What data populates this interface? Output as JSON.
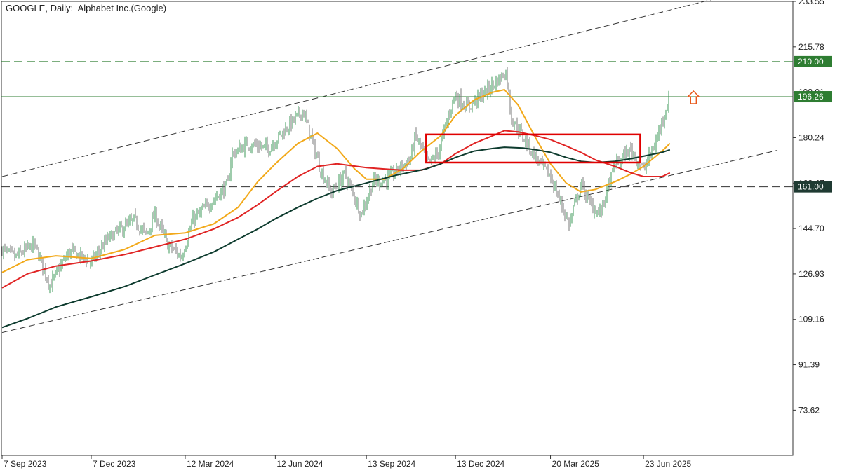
{
  "header": {
    "symbol": "GOOGLE",
    "timeframe": "Daily",
    "description": "Alphabet Inc.(Google)"
  },
  "chart_data": {
    "type": "candlestick",
    "title": "GOOGLE, Daily:  Alphabet Inc.(Google)",
    "y_ticks": [
      233.55,
      215.78,
      198.01,
      180.24,
      162.47,
      144.7,
      126.93,
      109.16,
      91.39,
      73.62
    ],
    "y_tick_labels": [
      "233.55",
      "215.78",
      "198.01",
      "180.24",
      "162.47",
      "144.70",
      "126.93",
      "109.16",
      "91.39",
      "73.62"
    ],
    "ylim": [
      55.9,
      233.55
    ],
    "x_ticks": [
      "7 Sep 2023",
      "7 Dec 2023",
      "12 Mar 2024",
      "12 Jun 2024",
      "13 Sep 2024",
      "13 Dec 2024",
      "20 Mar 2025",
      "23 Jun 2025"
    ],
    "grid": false,
    "levels": [
      {
        "value": 210.0,
        "label": "210.00",
        "style": "dashed",
        "color": "#2e7d32"
      },
      {
        "value": 196.26,
        "label": "196.26",
        "style": "solid",
        "color": "#2e7d32"
      },
      {
        "value": 161.0,
        "label": "161.00",
        "style": "dashed",
        "color": "#333333"
      }
    ],
    "channel": {
      "upper": {
        "from": [
          "7 Sep 2023",
          165.0
        ],
        "to": [
          "1 Jun 2025",
          225.5
        ]
      },
      "lower": {
        "from": [
          "7 Sep 2023",
          104.0
        ],
        "to": [
          "1 Jun 2025",
          161.0
        ]
      }
    },
    "zone": {
      "from": "13 Nov 2024",
      "to": "1 Jun 2025",
      "high": 181.5,
      "low": 170.5,
      "color": "#e00000"
    },
    "arrow": {
      "date": "13 Aug 2025",
      "value": 196.0,
      "direction": "up",
      "color": "#e8581a"
    },
    "moving_averages": [
      {
        "color": "#f2a91a",
        "values": [
          [
            "7 Sep 2023",
            127.5
          ],
          [
            "3 Oct 2023",
            132.5
          ],
          [
            "1 Nov 2023",
            134.0
          ],
          [
            "7 Dec 2023",
            133.0
          ],
          [
            "10 Jan 2024",
            136.5
          ],
          [
            "10 Feb 2024",
            142.0
          ],
          [
            "12 Mar 2024",
            143.0
          ],
          [
            "10 Apr 2024",
            146.5
          ],
          [
            "5 May 2024",
            153.0
          ],
          [
            "25 May 2024",
            163.0
          ],
          [
            "12 Jun 2024",
            170.0
          ],
          [
            "5 Jul 2024",
            178.0
          ],
          [
            "25 Jul 2024",
            182.0
          ],
          [
            "14 Aug 2024",
            176.0
          ],
          [
            "1 Sep 2024",
            168.0
          ],
          [
            "13 Sep 2024",
            164.0
          ],
          [
            "1 Oct 2024",
            164.0
          ],
          [
            "20 Oct 2024",
            168.0
          ],
          [
            "8 Nov 2024",
            175.0
          ],
          [
            "28 Nov 2024",
            181.0
          ],
          [
            "13 Dec 2024",
            189.0
          ],
          [
            "1 Jan 2025",
            195.0
          ],
          [
            "20 Jan 2025",
            198.0
          ],
          [
            "1 Feb 2025",
            199.0
          ],
          [
            "15 Feb 2025",
            193.0
          ],
          [
            "5 Mar 2025",
            180.0
          ],
          [
            "20 Mar 2025",
            170.0
          ],
          [
            "5 Apr 2025",
            162.5
          ],
          [
            "20 Apr 2025",
            159.0
          ],
          [
            "5 May 2025",
            160.0
          ],
          [
            "25 May 2025",
            163.0
          ],
          [
            "10 Jun 2025",
            166.0
          ],
          [
            "23 Jun 2025",
            169.0
          ],
          [
            "12 Jul 2025",
            175.0
          ],
          [
            "20 Jul 2025",
            178.0
          ]
        ]
      },
      {
        "color": "#e02424",
        "values": [
          [
            "7 Sep 2023",
            121.5
          ],
          [
            "3 Oct 2023",
            127.0
          ],
          [
            "1 Nov 2023",
            130.0
          ],
          [
            "7 Dec 2023",
            132.0
          ],
          [
            "10 Jan 2024",
            134.5
          ],
          [
            "10 Feb 2024",
            137.5
          ],
          [
            "12 Mar 2024",
            140.5
          ],
          [
            "10 Apr 2024",
            144.5
          ],
          [
            "5 May 2024",
            149.0
          ],
          [
            "25 May 2024",
            154.0
          ],
          [
            "12 Jun 2024",
            159.0
          ],
          [
            "5 Jul 2024",
            165.0
          ],
          [
            "25 Jul 2024",
            169.0
          ],
          [
            "14 Aug 2024",
            170.0
          ],
          [
            "13 Sep 2024",
            168.5
          ],
          [
            "1 Oct 2024",
            168.0
          ],
          [
            "20 Oct 2024",
            167.5
          ],
          [
            "8 Nov 2024",
            167.5
          ],
          [
            "28 Nov 2024",
            170.0
          ],
          [
            "13 Dec 2024",
            174.0
          ],
          [
            "1 Jan 2025",
            178.0
          ],
          [
            "20 Jan 2025",
            181.0
          ],
          [
            "1 Feb 2025",
            183.0
          ],
          [
            "15 Feb 2025",
            182.5
          ],
          [
            "5 Mar 2025",
            181.0
          ],
          [
            "20 Mar 2025",
            179.5
          ],
          [
            "5 Apr 2025",
            177.0
          ],
          [
            "20 Apr 2025",
            174.5
          ],
          [
            "5 May 2025",
            171.5
          ],
          [
            "25 May 2025",
            169.0
          ],
          [
            "10 Jun 2025",
            166.5
          ],
          [
            "23 Jun 2025",
            165.0
          ],
          [
            "12 Jul 2025",
            165.0
          ],
          [
            "20 Jul 2025",
            166.5
          ]
        ]
      },
      {
        "color": "#0d3b2e",
        "values": [
          [
            "7 Sep 2023",
            106.0
          ],
          [
            "3 Oct 2023",
            109.5
          ],
          [
            "1 Nov 2023",
            114.0
          ],
          [
            "7 Dec 2023",
            118.0
          ],
          [
            "10 Jan 2024",
            122.0
          ],
          [
            "10 Feb 2024",
            126.5
          ],
          [
            "12 Mar 2024",
            131.0
          ],
          [
            "10 Apr 2024",
            135.5
          ],
          [
            "5 May 2024",
            140.5
          ],
          [
            "25 May 2024",
            144.5
          ],
          [
            "12 Jun 2024",
            148.5
          ],
          [
            "5 Jul 2024",
            153.0
          ],
          [
            "25 Jul 2024",
            156.5
          ],
          [
            "14 Aug 2024",
            159.5
          ],
          [
            "13 Sep 2024",
            162.5
          ],
          [
            "13 Oct 2024",
            165.5
          ],
          [
            "13 Nov 2024",
            168.0
          ],
          [
            "28 Nov 2024",
            170.0
          ],
          [
            "13 Dec 2024",
            172.5
          ],
          [
            "1 Jan 2025",
            175.0
          ],
          [
            "20 Jan 2025",
            176.0
          ],
          [
            "1 Feb 2025",
            176.5
          ],
          [
            "20 Feb 2025",
            176.2
          ],
          [
            "5 Mar 2025",
            175.5
          ],
          [
            "20 Mar 2025",
            174.5
          ],
          [
            "5 Apr 2025",
            172.5
          ],
          [
            "20 Apr 2025",
            171.0
          ],
          [
            "5 May 2025",
            170.5
          ],
          [
            "25 May 2025",
            171.0
          ],
          [
            "10 Jun 2025",
            172.0
          ],
          [
            "23 Jun 2025",
            173.0
          ],
          [
            "12 Jul 2025",
            174.5
          ],
          [
            "20 Jul 2025",
            175.5
          ]
        ]
      }
    ],
    "price_path": [
      [
        "7 Sep 2023",
        136.5
      ],
      [
        "20 Sep 2023",
        133.5
      ],
      [
        "10 Oct 2023",
        138.5
      ],
      [
        "26 Oct 2023",
        122.5
      ],
      [
        "15 Nov 2023",
        136.0
      ],
      [
        "7 Dec 2023",
        131.5
      ],
      [
        "25 Dec 2023",
        141.0
      ],
      [
        "20 Jan 2024",
        148.0
      ],
      [
        "1 Feb 2024",
        142.0
      ],
      [
        "10 Feb 2024",
        150.0
      ],
      [
        "23 Feb 2024",
        138.5
      ],
      [
        "8 Mar 2024",
        133.5
      ],
      [
        "20 Mar 2024",
        148.0
      ],
      [
        "10 Apr 2024",
        156.0
      ],
      [
        "25 Apr 2024",
        162.0
      ],
      [
        "28 Apr 2024",
        173.5
      ],
      [
        "15 May 2024",
        178.0
      ],
      [
        "5 Jun 2024",
        176.0
      ],
      [
        "10 Jul 2024",
        191.0
      ],
      [
        "28 Jul 2024",
        168.0
      ],
      [
        "8 Aug 2024",
        158.5
      ],
      [
        "22 Aug 2024",
        166.0
      ],
      [
        "8 Sep 2024",
        150.5
      ],
      [
        "20 Sep 2024",
        163.0
      ],
      [
        "5 Oct 2024",
        164.0
      ],
      [
        "13 Oct 2024",
        167.0
      ],
      [
        "28 Oct 2024",
        172.0
      ],
      [
        "2 Nov 2024",
        181.0
      ],
      [
        "16 Nov 2024",
        170.0
      ],
      [
        "25 Nov 2024",
        174.0
      ],
      [
        "12 Dec 2024",
        197.0
      ],
      [
        "25 Dec 2024",
        192.0
      ],
      [
        "15 Jan 2025",
        199.0
      ],
      [
        "3 Feb 2025",
        206.0
      ],
      [
        "8 Feb 2025",
        188.0
      ],
      [
        "5 Mar 2025",
        172.5
      ],
      [
        "20 Mar 2025",
        165.0
      ],
      [
        "8 Apr 2025",
        146.5
      ],
      [
        "20 Apr 2025",
        162.0
      ],
      [
        "30 Apr 2025",
        154.0
      ],
      [
        "10 May 2025",
        150.5
      ],
      [
        "25 May 2025",
        170.0
      ],
      [
        "10 Jun 2025",
        175.5
      ],
      [
        "23 Jun 2025",
        167.5
      ],
      [
        "5 Jul 2025",
        178.0
      ],
      [
        "12 Jul 2025",
        187.0
      ],
      [
        "20 Jul 2025",
        196.26
      ]
    ]
  }
}
